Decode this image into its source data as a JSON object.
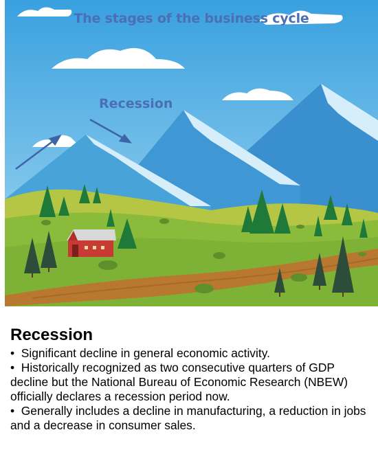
{
  "scene": {
    "title": "The stages of the business cycle",
    "stage_label": "Recession"
  },
  "panel": {
    "heading": "Recession",
    "bullet_mark": "•",
    "bullets": [
      "Significant decline in general economic activity.",
      "Historically recognized as two consecutive quarters of GDP decline but the National Bureau of Economic Research (NBEW) officially declares a recession period now.",
      "Generally includes a decline in manufacturing, a reduction in jobs and a decrease in consumer sales."
    ]
  },
  "colors": {
    "title_blue": "#4a6fb5",
    "sky": "#3ea3df",
    "mountain": "#3c93d0",
    "snow": "#d6eef9",
    "grass": "#8bb93a",
    "path": "#b9782f",
    "barn": "#c83a34"
  }
}
